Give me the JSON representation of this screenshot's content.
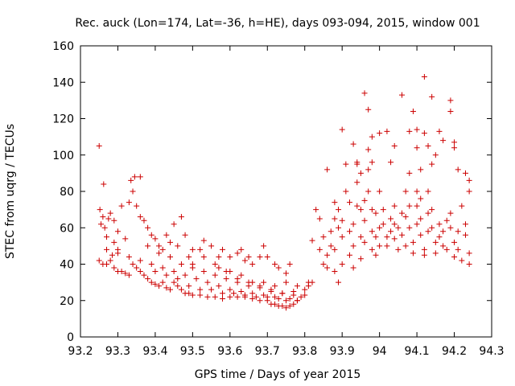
{
  "chart_data": {
    "type": "scatter",
    "title": "Rec. auck (Lon=174, Lat=-36, h=HE), days 093-094, 2015, window 001",
    "xlabel": "GPS time / Days of year 2015",
    "ylabel": "STEC from uqrg / TECUs",
    "xlim": [
      93.2,
      94.3
    ],
    "ylim": [
      0,
      160
    ],
    "xticks": [
      93.2,
      93.3,
      93.4,
      93.5,
      93.6,
      93.7,
      93.8,
      93.9,
      94,
      94.1,
      94.2,
      94.3
    ],
    "xtick_labels": [
      "93.2",
      "93.3",
      "93.4",
      "93.5",
      "93.6",
      "93.7",
      "93.8",
      "93.9",
      "94",
      "94.1",
      "94.2",
      "94.3"
    ],
    "yticks": [
      0,
      20,
      40,
      60,
      80,
      100,
      120,
      140,
      160
    ],
    "ytick_labels": [
      "0",
      "20",
      "40",
      "60",
      "80",
      "100",
      "120",
      "140",
      "160"
    ],
    "marker": "+",
    "color": "#cc0000",
    "grid": false,
    "series": [
      {
        "points": [
          [
            93.25,
            105
          ],
          [
            93.262,
            84
          ],
          [
            93.252,
            70
          ],
          [
            93.26,
            66
          ],
          [
            93.265,
            60
          ],
          [
            93.255,
            62
          ],
          [
            93.27,
            55
          ],
          [
            93.275,
            65
          ],
          [
            93.28,
            68
          ],
          [
            93.29,
            64
          ],
          [
            93.27,
            48
          ],
          [
            93.285,
            45
          ],
          [
            93.29,
            52
          ],
          [
            93.3,
            58
          ],
          [
            93.3,
            48
          ],
          [
            93.32,
            54
          ],
          [
            93.31,
            72
          ],
          [
            93.33,
            74
          ],
          [
            93.335,
            86
          ],
          [
            93.34,
            80
          ],
          [
            93.345,
            88
          ],
          [
            93.35,
            72
          ],
          [
            93.36,
            88
          ],
          [
            93.36,
            66
          ],
          [
            93.37,
            64
          ],
          [
            93.38,
            60
          ],
          [
            93.39,
            56
          ],
          [
            93.4,
            54
          ],
          [
            93.41,
            50
          ],
          [
            93.42,
            48
          ],
          [
            93.43,
            56
          ],
          [
            93.44,
            52
          ],
          [
            93.45,
            62
          ],
          [
            93.46,
            50
          ],
          [
            93.47,
            66
          ],
          [
            93.48,
            56
          ],
          [
            93.49,
            44
          ],
          [
            93.5,
            40
          ],
          [
            93.52,
            48
          ],
          [
            93.53,
            53
          ],
          [
            93.55,
            50
          ],
          [
            93.57,
            44
          ],
          [
            93.58,
            48
          ],
          [
            93.6,
            44
          ],
          [
            93.62,
            46
          ],
          [
            93.63,
            48
          ],
          [
            93.64,
            42
          ],
          [
            93.65,
            44
          ],
          [
            93.66,
            40
          ],
          [
            93.68,
            44
          ],
          [
            93.69,
            50
          ],
          [
            93.7,
            44
          ],
          [
            93.72,
            40
          ],
          [
            93.73,
            38
          ],
          [
            93.75,
            35
          ],
          [
            93.76,
            40
          ],
          [
            93.25,
            42
          ],
          [
            93.26,
            40
          ],
          [
            93.27,
            40
          ],
          [
            93.28,
            42
          ],
          [
            93.29,
            38
          ],
          [
            93.3,
            36
          ],
          [
            93.31,
            36
          ],
          [
            93.32,
            35
          ],
          [
            93.33,
            34
          ],
          [
            93.34,
            40
          ],
          [
            93.35,
            38
          ],
          [
            93.36,
            36
          ],
          [
            93.37,
            34
          ],
          [
            93.38,
            32
          ],
          [
            93.39,
            30
          ],
          [
            93.4,
            29
          ],
          [
            93.41,
            28
          ],
          [
            93.42,
            30
          ],
          [
            93.43,
            27
          ],
          [
            93.44,
            26
          ],
          [
            93.45,
            30
          ],
          [
            93.46,
            28
          ],
          [
            93.47,
            26
          ],
          [
            93.48,
            24
          ],
          [
            93.49,
            24
          ],
          [
            93.5,
            23
          ],
          [
            93.52,
            23
          ],
          [
            93.54,
            22
          ],
          [
            93.56,
            22
          ],
          [
            93.58,
            21
          ],
          [
            93.6,
            22
          ],
          [
            93.62,
            22
          ],
          [
            93.64,
            22
          ],
          [
            93.66,
            21
          ],
          [
            93.68,
            20
          ],
          [
            93.7,
            20
          ],
          [
            93.71,
            18
          ],
          [
            93.72,
            18
          ],
          [
            93.73,
            17
          ],
          [
            93.74,
            17
          ],
          [
            93.75,
            16
          ],
          [
            93.76,
            17
          ],
          [
            93.77,
            18
          ],
          [
            93.78,
            20
          ],
          [
            93.3,
            46
          ],
          [
            93.33,
            44
          ],
          [
            93.36,
            42
          ],
          [
            93.39,
            40
          ],
          [
            93.42,
            38
          ],
          [
            93.45,
            36
          ],
          [
            93.48,
            34
          ],
          [
            93.51,
            32
          ],
          [
            93.54,
            30
          ],
          [
            93.57,
            28
          ],
          [
            93.6,
            26
          ],
          [
            93.63,
            25
          ],
          [
            93.66,
            24
          ],
          [
            93.69,
            23
          ],
          [
            93.72,
            22
          ],
          [
            93.75,
            20
          ],
          [
            93.78,
            20
          ],
          [
            93.38,
            50
          ],
          [
            93.41,
            46
          ],
          [
            93.44,
            44
          ],
          [
            93.47,
            40
          ],
          [
            93.5,
            38
          ],
          [
            93.53,
            36
          ],
          [
            93.56,
            34
          ],
          [
            93.59,
            32
          ],
          [
            93.62,
            30
          ],
          [
            93.65,
            28
          ],
          [
            93.68,
            27
          ],
          [
            93.71,
            25
          ],
          [
            93.74,
            24
          ],
          [
            93.77,
            23
          ],
          [
            93.8,
            23
          ],
          [
            93.4,
            36
          ],
          [
            93.43,
            34
          ],
          [
            93.46,
            32
          ],
          [
            93.49,
            28
          ],
          [
            93.52,
            26
          ],
          [
            93.55,
            26
          ],
          [
            93.58,
            24
          ],
          [
            93.61,
            24
          ],
          [
            93.64,
            23
          ],
          [
            93.67,
            22
          ],
          [
            93.7,
            22
          ],
          [
            93.73,
            21
          ],
          [
            93.76,
            21
          ],
          [
            93.79,
            22
          ],
          [
            93.5,
            48
          ],
          [
            93.53,
            44
          ],
          [
            93.56,
            40
          ],
          [
            93.59,
            36
          ],
          [
            93.62,
            32
          ],
          [
            93.65,
            30
          ],
          [
            93.68,
            28
          ],
          [
            93.71,
            26
          ],
          [
            93.74,
            24
          ],
          [
            93.77,
            25
          ],
          [
            93.57,
            38
          ],
          [
            93.6,
            36
          ],
          [
            93.63,
            34
          ],
          [
            93.66,
            30
          ],
          [
            93.69,
            30
          ],
          [
            93.72,
            28
          ],
          [
            93.75,
            30
          ],
          [
            93.78,
            28
          ],
          [
            93.81,
            30
          ],
          [
            93.8,
            26
          ],
          [
            93.81,
            28
          ],
          [
            93.82,
            30
          ],
          [
            93.82,
            53
          ],
          [
            93.83,
            70
          ],
          [
            93.84,
            65
          ],
          [
            93.85,
            55
          ],
          [
            93.84,
            48
          ],
          [
            93.85,
            40
          ],
          [
            93.86,
            38
          ],
          [
            93.86,
            45
          ],
          [
            93.87,
            50
          ],
          [
            93.87,
            58
          ],
          [
            93.88,
            65
          ],
          [
            93.88,
            74
          ],
          [
            93.89,
            70
          ],
          [
            93.89,
            60
          ],
          [
            93.88,
            48
          ],
          [
            93.88,
            36
          ],
          [
            93.89,
            30
          ],
          [
            93.9,
            40
          ],
          [
            93.9,
            55
          ],
          [
            93.9,
            64
          ],
          [
            93.91,
            95
          ],
          [
            93.91,
            80
          ],
          [
            93.92,
            74
          ],
          [
            93.92,
            58
          ],
          [
            93.92,
            45
          ],
          [
            93.93,
            38
          ],
          [
            93.93,
            50
          ],
          [
            93.93,
            62
          ],
          [
            93.94,
            72
          ],
          [
            93.94,
            85
          ],
          [
            93.94,
            95
          ],
          [
            93.95,
            90
          ],
          [
            93.95,
            70
          ],
          [
            93.95,
            55
          ],
          [
            93.95,
            43
          ],
          [
            93.96,
            52
          ],
          [
            93.96,
            64
          ],
          [
            93.96,
            75
          ],
          [
            93.97,
            80
          ],
          [
            93.97,
            92
          ],
          [
            93.97,
            103
          ],
          [
            93.98,
            96
          ],
          [
            93.98,
            70
          ],
          [
            93.98,
            58
          ],
          [
            93.98,
            48
          ],
          [
            93.99,
            45
          ],
          [
            93.99,
            55
          ],
          [
            93.99,
            68
          ],
          [
            94,
            80
          ],
          [
            94,
            60
          ],
          [
            94,
            50
          ],
          [
            93.86,
            92
          ],
          [
            93.9,
            114
          ],
          [
            93.93,
            106
          ],
          [
            93.94,
            96
          ],
          [
            93.96,
            134
          ],
          [
            93.97,
            125
          ],
          [
            93.98,
            110
          ],
          [
            94.0,
            112
          ],
          [
            94.02,
            113
          ],
          [
            94.03,
            96
          ],
          [
            94.04,
            105
          ],
          [
            94.06,
            133
          ],
          [
            94.08,
            113
          ],
          [
            94.09,
            124
          ],
          [
            94.1,
            114
          ],
          [
            94.1,
            104
          ],
          [
            94.11,
            92
          ],
          [
            94.12,
            143
          ],
          [
            94.12,
            112
          ],
          [
            94.13,
            105
          ],
          [
            94.14,
            132
          ],
          [
            94.15,
            100
          ],
          [
            94.16,
            113
          ],
          [
            94.17,
            108
          ],
          [
            94.19,
            130
          ],
          [
            94.19,
            124
          ],
          [
            94.2,
            107
          ],
          [
            94.2,
            104
          ],
          [
            94.21,
            92
          ],
          [
            94.23,
            90
          ],
          [
            94.24,
            86
          ],
          [
            94.01,
            70
          ],
          [
            94.01,
            62
          ],
          [
            94.02,
            55
          ],
          [
            94.02,
            50
          ],
          [
            94.03,
            65
          ],
          [
            94.03,
            58
          ],
          [
            94.04,
            72
          ],
          [
            94.04,
            62
          ],
          [
            94.04,
            54
          ],
          [
            94.05,
            48
          ],
          [
            94.05,
            60
          ],
          [
            94.06,
            68
          ],
          [
            94.06,
            56
          ],
          [
            94.07,
            50
          ],
          [
            94.07,
            66
          ],
          [
            94.07,
            80
          ],
          [
            94.08,
            90
          ],
          [
            94.08,
            72
          ],
          [
            94.08,
            60
          ],
          [
            94.09,
            52
          ],
          [
            94.09,
            46
          ],
          [
            94.1,
            62
          ],
          [
            94.1,
            72
          ],
          [
            94.1,
            80
          ],
          [
            94.11,
            76
          ],
          [
            94.11,
            65
          ],
          [
            94.11,
            56
          ],
          [
            94.12,
            48
          ],
          [
            94.12,
            45
          ],
          [
            94.13,
            58
          ],
          [
            94.13,
            68
          ],
          [
            94.13,
            80
          ],
          [
            94.14,
            95
          ],
          [
            94.14,
            70
          ],
          [
            94.14,
            60
          ],
          [
            94.15,
            52
          ],
          [
            94.15,
            46
          ],
          [
            94.16,
            55
          ],
          [
            94.16,
            62
          ],
          [
            94.17,
            58
          ],
          [
            94.17,
            50
          ],
          [
            94.18,
            64
          ],
          [
            94.18,
            48
          ],
          [
            94.19,
            68
          ],
          [
            94.19,
            60
          ],
          [
            94.2,
            52
          ],
          [
            94.2,
            44
          ],
          [
            94.21,
            58
          ],
          [
            94.21,
            48
          ],
          [
            94.22,
            42
          ],
          [
            94.22,
            72
          ],
          [
            94.23,
            62
          ],
          [
            94.23,
            56
          ],
          [
            94.24,
            46
          ],
          [
            94.24,
            40
          ],
          [
            94.24,
            80
          ]
        ]
      }
    ]
  }
}
